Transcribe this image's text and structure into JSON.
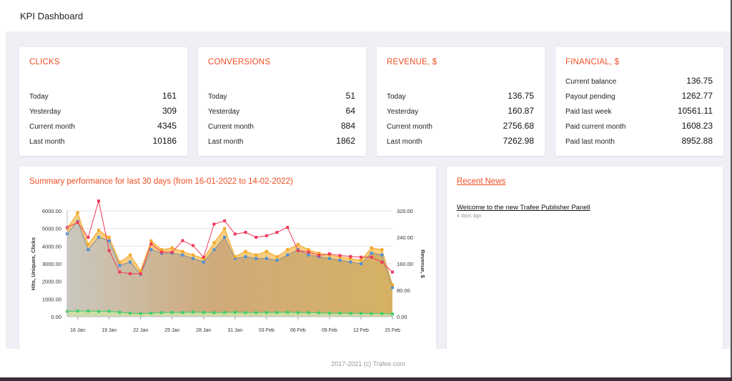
{
  "header": {
    "title": "KPI Dashboard"
  },
  "kpi_cards": [
    {
      "title": "CLICKS",
      "rows": [
        {
          "label": "Today",
          "value": "161"
        },
        {
          "label": "Yesterday",
          "value": "309"
        },
        {
          "label": "Current month",
          "value": "4345"
        },
        {
          "label": "Last month",
          "value": "10186"
        }
      ]
    },
    {
      "title": "CONVERSIONS",
      "rows": [
        {
          "label": "Today",
          "value": "51"
        },
        {
          "label": "Yesterday",
          "value": "64"
        },
        {
          "label": "Current month",
          "value": "884"
        },
        {
          "label": "Last month",
          "value": "1862"
        }
      ]
    },
    {
      "title": "REVENUE,  $",
      "rows": [
        {
          "label": "Today",
          "value": "136.75"
        },
        {
          "label": "Yesterday",
          "value": "160.87"
        },
        {
          "label": "Current month",
          "value": "2756.68"
        },
        {
          "label": "Last month",
          "value": "7262.98"
        }
      ]
    },
    {
      "title": "FINANCIAL,  $",
      "rows": [
        {
          "label": "Current balance",
          "value": "136.75"
        },
        {
          "label": "Payout pending",
          "value": "1262.77"
        },
        {
          "label": "Paid last week",
          "value": "10561.11"
        },
        {
          "label": "Paid current month",
          "value": "1608.23"
        },
        {
          "label": "Paid last month",
          "value": "8952.88"
        }
      ]
    }
  ],
  "summary": {
    "title": "Summary performance for last 30 days (from 16-01-2022 to 14-02-2022)"
  },
  "news": {
    "title": "Recent News",
    "items": [
      {
        "title": "Welcome to the new Trafee Publisher Panell",
        "age": "4 days ago"
      }
    ]
  },
  "footer": {
    "text": "2017-2021 (c) Trafee.com"
  },
  "colors": {
    "accent": "#f04e23",
    "hits": "#f5a623",
    "uniques": "#4a90d9",
    "revenue": "#f0395a",
    "conversions": "#3ecf6a"
  },
  "chart_data": {
    "type": "area",
    "ylabel": "Hits, Uniques, Clicks",
    "y2label": "Revenue, $",
    "ylim": [
      0,
      6000
    ],
    "y2lim": [
      0,
      320
    ],
    "yticks": [
      "0.00",
      "1000.00",
      "2000.00",
      "3000.00",
      "4000.00",
      "5000.00",
      "6000.00"
    ],
    "y2ticks": [
      "0.00",
      "80.00",
      "160.00",
      "240.00",
      "320.00"
    ],
    "xticks": [
      "16 Jan",
      "19 Jan",
      "22 Jan",
      "25 Jan",
      "28 Jan",
      "31 Jan",
      "03 Feb",
      "06 Feb",
      "09 Feb",
      "12 Feb",
      "15 Feb"
    ],
    "x": [
      "15 Jan",
      "16 Jan",
      "17 Jan",
      "18 Jan",
      "19 Jan",
      "20 Jan",
      "21 Jan",
      "22 Jan",
      "23 Jan",
      "24 Jan",
      "25 Jan",
      "26 Jan",
      "27 Jan",
      "28 Jan",
      "29 Jan",
      "30 Jan",
      "31 Jan",
      "01 Feb",
      "02 Feb",
      "03 Feb",
      "04 Feb",
      "05 Feb",
      "06 Feb",
      "07 Feb",
      "08 Feb",
      "09 Feb",
      "10 Feb",
      "11 Feb",
      "12 Feb",
      "13 Feb",
      "14 Feb",
      "15 Feb"
    ],
    "series": [
      {
        "key": "hits",
        "axis": "left",
        "values": [
          5000,
          5900,
          4100,
          4900,
          4500,
          3100,
          3500,
          2600,
          4300,
          3800,
          3900,
          3700,
          3500,
          3300,
          4200,
          5000,
          3400,
          3700,
          3500,
          3700,
          3400,
          3800,
          4100,
          3800,
          3600,
          3500,
          3400,
          3300,
          3200,
          3900,
          3800,
          1800
        ]
      },
      {
        "key": "uniques",
        "axis": "left",
        "values": [
          4700,
          5400,
          3800,
          4500,
          4300,
          2900,
          3100,
          2400,
          3800,
          3600,
          3600,
          3500,
          3300,
          3100,
          3800,
          4500,
          3300,
          3400,
          3300,
          3300,
          3200,
          3500,
          3800,
          3500,
          3400,
          3300,
          3200,
          3100,
          3000,
          3600,
          3500,
          1650
        ]
      },
      {
        "key": "revenue",
        "axis": "right",
        "values": [
          270,
          285,
          240,
          350,
          200,
          135,
          130,
          130,
          220,
          195,
          195,
          230,
          215,
          180,
          280,
          290,
          250,
          255,
          240,
          245,
          255,
          270,
          200,
          195,
          185,
          190,
          185,
          182,
          180,
          180,
          165,
          135
        ]
      },
      {
        "key": "conversions",
        "axis": "left",
        "values": [
          300,
          320,
          320,
          300,
          310,
          250,
          200,
          180,
          200,
          230,
          240,
          240,
          260,
          240,
          230,
          240,
          250,
          230,
          230,
          240,
          240,
          250,
          230,
          230,
          220,
          200,
          200,
          190,
          190,
          180,
          180,
          150
        ]
      }
    ]
  }
}
